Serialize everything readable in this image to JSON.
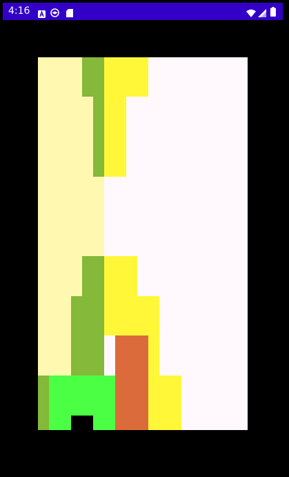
{
  "status_bar": {
    "time": "4:16",
    "background_color": "#3300c8",
    "notification_icons": [
      "a-box-icon",
      "no-entry-circle-icon",
      "sd-card-icon"
    ],
    "system_icons": [
      "wifi-icon",
      "cell-signal-icon",
      "battery-icon"
    ]
  },
  "board": {
    "background_color": "#fff9fe",
    "palette": {
      "cream": "#fff8b0",
      "olive_green": "#84b93a",
      "yellow": "#fff737",
      "bright_green": "#4bff44",
      "orange": "#dc6b3b",
      "black": "#000000"
    },
    "blocks": [
      {
        "id": "cream-column",
        "color": "cream"
      },
      {
        "id": "olive-top-a",
        "color": "olive_green"
      },
      {
        "id": "olive-top-b",
        "color": "olive_green"
      },
      {
        "id": "yellow-top-a",
        "color": "yellow"
      },
      {
        "id": "yellow-top-b",
        "color": "yellow"
      },
      {
        "id": "olive-mid-a",
        "color": "olive_green"
      },
      {
        "id": "olive-mid-b",
        "color": "olive_green"
      },
      {
        "id": "olive-bottom-edge",
        "color": "olive_green"
      },
      {
        "id": "yellow-mid-a",
        "color": "yellow"
      },
      {
        "id": "yellow-mid-b",
        "color": "yellow"
      },
      {
        "id": "yellow-mid-c",
        "color": "yellow"
      },
      {
        "id": "yellow-bottom",
        "color": "yellow"
      },
      {
        "id": "green-base-a",
        "color": "bright_green"
      },
      {
        "id": "green-base-b",
        "color": "bright_green"
      },
      {
        "id": "green-base-c",
        "color": "bright_green"
      },
      {
        "id": "black-notch",
        "color": "black"
      },
      {
        "id": "orange-pillar",
        "color": "orange"
      }
    ]
  }
}
